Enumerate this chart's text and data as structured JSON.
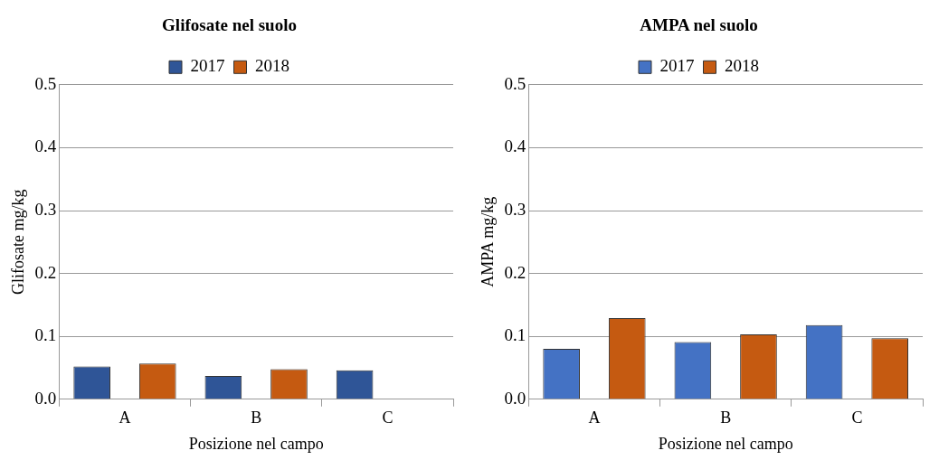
{
  "chart_data": [
    {
      "type": "bar",
      "title": "Glifosate nel suolo",
      "xlabel": "Posizione nel campo",
      "ylabel": "Glifosate mg/kg",
      "categories": [
        "A",
        "B",
        "C"
      ],
      "series": [
        {
          "name": "2017",
          "color": "#2f5597",
          "values": [
            0.052,
            0.037,
            0.046
          ]
        },
        {
          "name": "2018",
          "color": "#c55a11",
          "values": [
            0.057,
            0.048,
            null
          ]
        }
      ],
      "ylim": [
        0,
        0.5
      ],
      "yticks": [
        {
          "value": 0,
          "label": "0.0"
        },
        0.1,
        0.2,
        0.3,
        0.4,
        0.5
      ],
      "grid": "y",
      "legend": "top"
    },
    {
      "type": "bar",
      "title": "AMPA nel suolo",
      "xlabel": "Posizione nel campo",
      "ylabel": "AMPA mg/kg",
      "categories": [
        "A",
        "B",
        "C"
      ],
      "series": [
        {
          "name": "2017",
          "color": "#4472c4",
          "values": [
            0.08,
            0.091,
            0.118
          ]
        },
        {
          "name": "2018",
          "color": "#c55a11",
          "values": [
            0.129,
            0.103,
            0.097
          ]
        }
      ],
      "ylim": [
        0,
        0.5
      ],
      "yticks": [
        {
          "value": 0,
          "label": "0.0"
        },
        0.1,
        0.2,
        0.3,
        0.4,
        0.5
      ],
      "grid": "y",
      "legend": "top"
    }
  ]
}
